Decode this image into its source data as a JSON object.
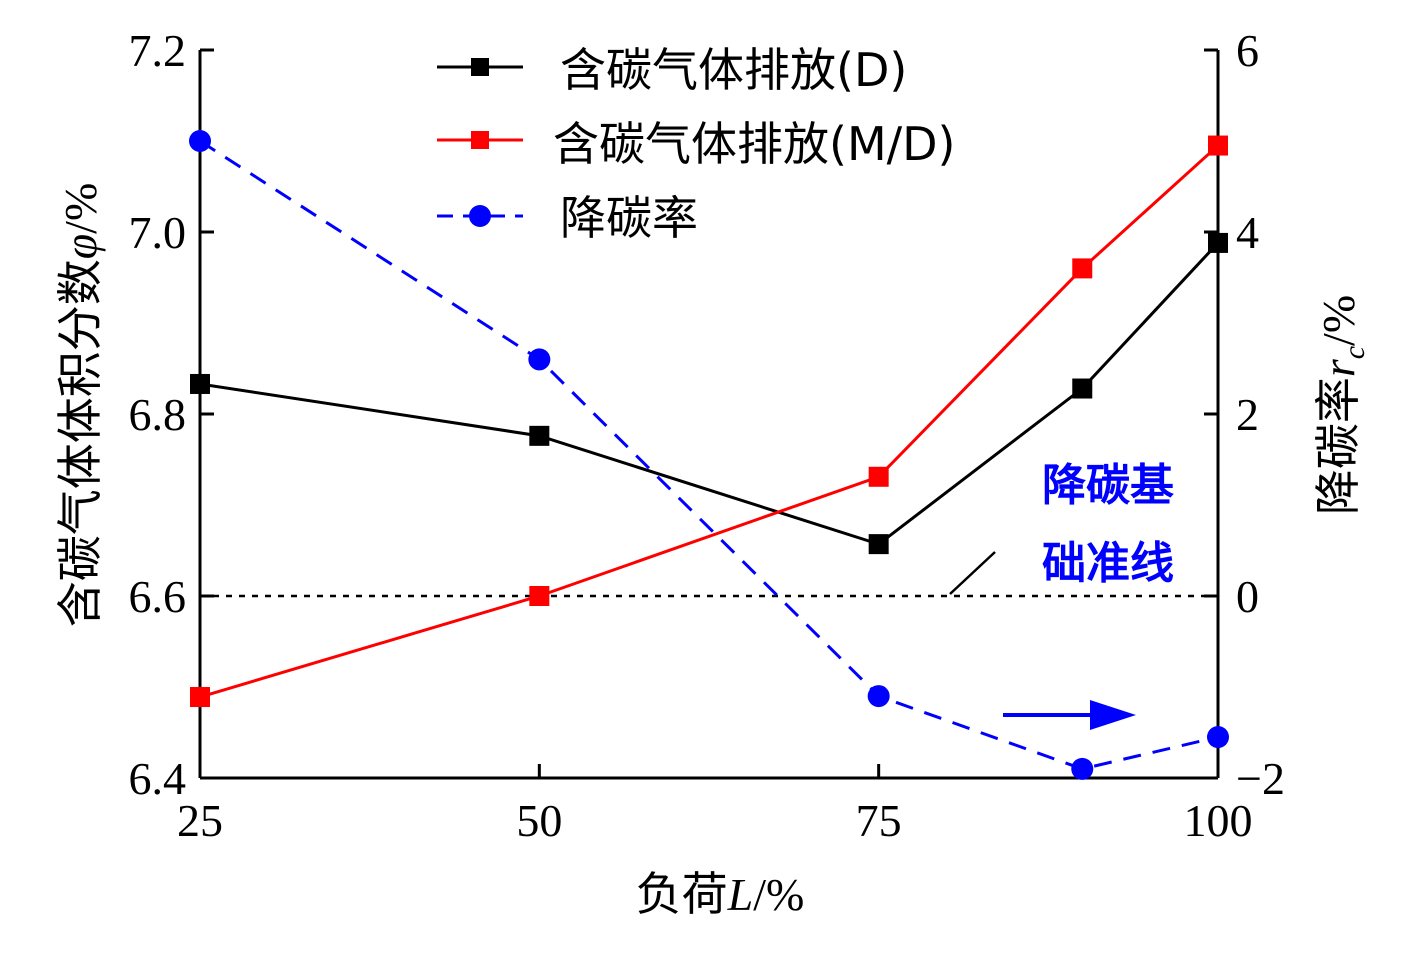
{
  "chart_data": {
    "type": "line",
    "x": [
      25,
      50,
      75,
      90,
      100
    ],
    "xlim": [
      25,
      100
    ],
    "xticks": [
      "25",
      "50",
      "75",
      "100"
    ],
    "xlabel": {
      "prefix": "负荷",
      "var": "L",
      "unit": "/%"
    },
    "ylabel_left": {
      "prefix": "含碳气体体积分数",
      "var": "φ",
      "unit": "/%"
    },
    "ylabel_right": {
      "prefix": "降碳率",
      "var": "r",
      "sub": "c",
      "unit": "/%"
    },
    "ylim_left": [
      6.4,
      7.2
    ],
    "yticks_left": [
      "6.4",
      "6.6",
      "6.8",
      "7.0",
      "7.2"
    ],
    "ylim_right": [
      -2,
      6
    ],
    "yticks_right": [
      "−2",
      "0",
      "2",
      "4",
      "6"
    ],
    "series": [
      {
        "name": "含碳气体排放(D)",
        "axis": "left",
        "color": "#000000",
        "marker": "square",
        "dash": false,
        "x": [
          25,
          50,
          75,
          90,
          100
        ],
        "values": [
          6.833,
          6.776,
          6.657,
          6.828,
          6.988
        ]
      },
      {
        "name": "含碳气体排放(M/D)",
        "axis": "left",
        "color": "#ff0000",
        "marker": "square",
        "dash": false,
        "x": [
          25,
          50,
          75,
          90,
          100
        ],
        "values": [
          6.489,
          6.6,
          6.731,
          6.96,
          7.095
        ]
      },
      {
        "name": "降碳率",
        "axis": "right",
        "color": "#0000ff",
        "marker": "circle",
        "dash": true,
        "x": [
          25,
          50,
          75,
          90,
          100
        ],
        "values": [
          5.0,
          2.6,
          -1.1,
          -1.9,
          -1.55
        ]
      }
    ],
    "baseline": {
      "axis": "right",
      "value": 0,
      "label_line1": "降碳基",
      "label_line2": "础准线",
      "color": "#0000ff"
    },
    "arrow_annotation": {
      "direction": "right",
      "meaning": "降碳率 uses right axis",
      "color": "#0000ff"
    }
  }
}
